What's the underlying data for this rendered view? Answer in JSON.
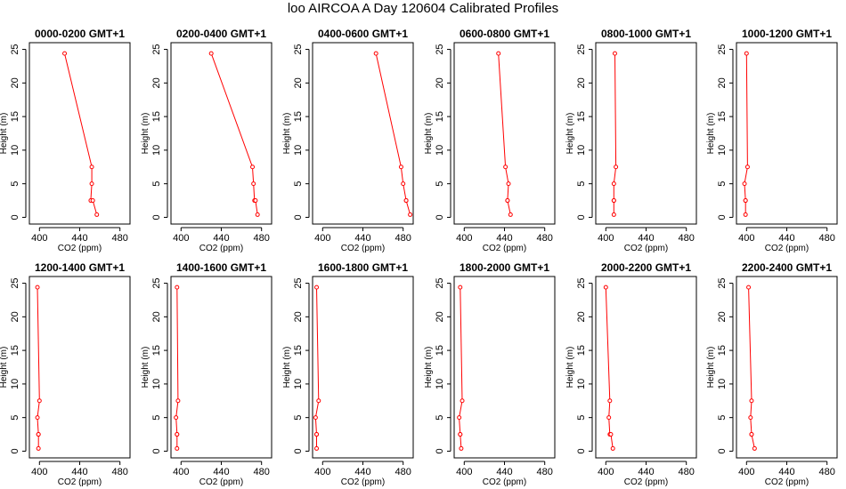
{
  "title": "loo AIRCOA A  Day 120604  Calibrated Profiles",
  "colors": {
    "series": "#ff0000",
    "axis": "#000000"
  },
  "chart_data": [
    {
      "type": "line",
      "title": "0000-0200 GMT+1",
      "xlabel": "CO2 (ppm)",
      "ylabel": "Height (m)",
      "xlim": [
        390,
        490
      ],
      "ylim": [
        -1,
        26
      ],
      "xticks": [
        400,
        440,
        480
      ],
      "yticks": [
        0,
        5,
        10,
        15,
        20,
        25
      ],
      "x": [
        425,
        452,
        452,
        451,
        453,
        457
      ],
      "y": [
        24.4,
        7.5,
        5.0,
        2.5,
        2.5,
        0.4
      ]
    },
    {
      "type": "line",
      "title": "0200-0400 GMT+1",
      "xlabel": "CO2 (ppm)",
      "ylabel": "Height (m)",
      "xlim": [
        390,
        490
      ],
      "ylim": [
        -1,
        26
      ],
      "xticks": [
        400,
        440,
        480
      ],
      "yticks": [
        0,
        5,
        10,
        15,
        20,
        25
      ],
      "x": [
        430,
        471,
        472,
        473,
        474,
        476
      ],
      "y": [
        24.4,
        7.5,
        5.0,
        2.5,
        2.5,
        0.4
      ]
    },
    {
      "type": "line",
      "title": "0400-0600 GMT+1",
      "xlabel": "CO2 (ppm)",
      "ylabel": "Height (m)",
      "xlim": [
        390,
        490
      ],
      "ylim": [
        -1,
        26
      ],
      "xticks": [
        400,
        440,
        480
      ],
      "yticks": [
        0,
        5,
        10,
        15,
        20,
        25
      ],
      "x": [
        453,
        478,
        480,
        483,
        483,
        487
      ],
      "y": [
        24.4,
        7.5,
        5.0,
        2.5,
        2.5,
        0.4
      ]
    },
    {
      "type": "line",
      "title": "0600-0800 GMT+1",
      "xlabel": "CO2 (ppm)",
      "ylabel": "Height (m)",
      "xlim": [
        390,
        490
      ],
      "ylim": [
        -1,
        26
      ],
      "xticks": [
        400,
        440,
        480
      ],
      "yticks": [
        0,
        5,
        10,
        15,
        20,
        25
      ],
      "x": [
        434,
        441,
        444,
        443,
        443,
        446
      ],
      "y": [
        24.4,
        7.5,
        5.0,
        2.5,
        2.5,
        0.4
      ]
    },
    {
      "type": "line",
      "title": "0800-1000 GMT+1",
      "xlabel": "CO2 (ppm)",
      "ylabel": "Height (m)",
      "xlim": [
        390,
        490
      ],
      "ylim": [
        -1,
        26
      ],
      "xticks": [
        400,
        440,
        480
      ],
      "yticks": [
        0,
        5,
        10,
        15,
        20,
        25
      ],
      "x": [
        409,
        410,
        408,
        408,
        408,
        408
      ],
      "y": [
        24.4,
        7.5,
        5.0,
        2.5,
        2.5,
        0.4
      ]
    },
    {
      "type": "line",
      "title": "1000-1200 GMT+1",
      "xlabel": "CO2 (ppm)",
      "ylabel": "Height (m)",
      "xlim": [
        390,
        490
      ],
      "ylim": [
        -1,
        26
      ],
      "xticks": [
        400,
        440,
        480
      ],
      "yticks": [
        0,
        5,
        10,
        15,
        20,
        25
      ],
      "x": [
        400,
        401,
        398,
        399,
        399,
        399
      ],
      "y": [
        24.4,
        7.5,
        5.0,
        2.5,
        2.5,
        0.4
      ]
    },
    {
      "type": "line",
      "title": "1200-1400 GMT+1",
      "xlabel": "CO2 (ppm)",
      "ylabel": "Height (m)",
      "xlim": [
        390,
        490
      ],
      "ylim": [
        -1,
        26
      ],
      "xticks": [
        400,
        440,
        480
      ],
      "yticks": [
        0,
        5,
        10,
        15,
        20,
        25
      ],
      "x": [
        398,
        400,
        398,
        399,
        399,
        399
      ],
      "y": [
        24.4,
        7.5,
        5.0,
        2.5,
        2.5,
        0.4
      ]
    },
    {
      "type": "line",
      "title": "1400-1600 GMT+1",
      "xlabel": "CO2 (ppm)",
      "ylabel": "Height (m)",
      "xlim": [
        390,
        490
      ],
      "ylim": [
        -1,
        26
      ],
      "xticks": [
        400,
        440,
        480
      ],
      "yticks": [
        0,
        5,
        10,
        15,
        20,
        25
      ],
      "x": [
        396,
        397,
        395,
        396,
        396,
        396
      ],
      "y": [
        24.4,
        7.5,
        5.0,
        2.5,
        2.5,
        0.4
      ]
    },
    {
      "type": "line",
      "title": "1600-1800 GMT+1",
      "xlabel": "CO2 (ppm)",
      "ylabel": "Height (m)",
      "xlim": [
        390,
        490
      ],
      "ylim": [
        -1,
        26
      ],
      "xticks": [
        400,
        440,
        480
      ],
      "yticks": [
        0,
        5,
        10,
        15,
        20,
        25
      ],
      "x": [
        394,
        396,
        393,
        394,
        394,
        394
      ],
      "y": [
        24.4,
        7.5,
        5.0,
        2.5,
        2.5,
        0.4
      ]
    },
    {
      "type": "line",
      "title": "1800-2000 GMT+1",
      "xlabel": "CO2 (ppm)",
      "ylabel": "Height (m)",
      "xlim": [
        390,
        490
      ],
      "ylim": [
        -1,
        26
      ],
      "xticks": [
        400,
        440,
        480
      ],
      "yticks": [
        0,
        5,
        10,
        15,
        20,
        25
      ],
      "x": [
        396,
        398,
        395,
        396,
        396,
        397
      ],
      "y": [
        24.4,
        7.5,
        5.0,
        2.5,
        2.5,
        0.4
      ]
    },
    {
      "type": "line",
      "title": "2000-2200 GMT+1",
      "xlabel": "CO2 (ppm)",
      "ylabel": "Height (m)",
      "xlim": [
        390,
        490
      ],
      "ylim": [
        -1,
        26
      ],
      "xticks": [
        400,
        440,
        480
      ],
      "yticks": [
        0,
        5,
        10,
        15,
        20,
        25
      ],
      "x": [
        400,
        404,
        403,
        404,
        405,
        407
      ],
      "y": [
        24.4,
        7.5,
        5.0,
        2.5,
        2.5,
        0.4
      ]
    },
    {
      "type": "line",
      "title": "2200-2400 GMT+1",
      "xlabel": "CO2 (ppm)",
      "ylabel": "Height (m)",
      "xlim": [
        390,
        490
      ],
      "ylim": [
        -1,
        26
      ],
      "xticks": [
        400,
        440,
        480
      ],
      "yticks": [
        0,
        5,
        10,
        15,
        20,
        25
      ],
      "x": [
        402,
        405,
        404,
        405,
        405,
        408
      ],
      "y": [
        24.4,
        7.5,
        5.0,
        2.5,
        2.5,
        0.4
      ]
    }
  ]
}
